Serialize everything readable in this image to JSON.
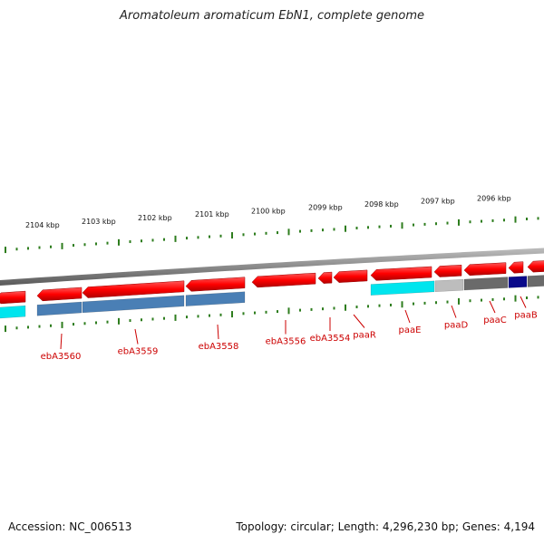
{
  "title": "Aromatoleum aromaticum EbN1, complete genome",
  "footer": {
    "accession": "Accession: NC_006513",
    "summary": "Topology: circular; Length: 4,296,230 bp; Genes: 4,194"
  },
  "colors": {
    "forward_cds": "#ff0000",
    "backbone": "#8a8a8a",
    "tick": "#2e7d1e",
    "label": "#cc0000",
    "label_leader": "#cc0000"
  },
  "kbp_ticks": [
    "2104 kbp",
    "2103 kbp",
    "2102 kbp",
    "2101 kbp",
    "2100 kbp",
    "2099 kbp",
    "2098 kbp",
    "2097 kbp",
    "2096 kbp"
  ],
  "gene_labels": [
    "ebA3560",
    "ebA3559",
    "ebA3558",
    "ebA3556",
    "ebA3554",
    "paaR",
    "paaE",
    "paaD",
    "paaC",
    "paaB"
  ],
  "features": [
    {
      "kind": "cds",
      "color": "#ff0000"
    },
    {
      "kind": "cds",
      "color": "#ff0000"
    },
    {
      "kind": "cds",
      "color": "#ff0000"
    },
    {
      "kind": "cds",
      "color": "#ff0000"
    },
    {
      "kind": "cds",
      "color": "#ff0000"
    },
    {
      "kind": "cds",
      "color": "#ff0000"
    },
    {
      "kind": "cds",
      "color": "#ff0000"
    },
    {
      "kind": "cds",
      "color": "#ff0000"
    },
    {
      "kind": "cds",
      "color": "#ff0000"
    },
    {
      "kind": "cds",
      "color": "#ff0000"
    },
    {
      "kind": "cds",
      "color": "#ff0000"
    },
    {
      "kind": "cds",
      "color": "#ff0000"
    },
    {
      "kind": "annotation",
      "color": "#00e5ee"
    },
    {
      "kind": "annotation",
      "color": "#4a7fb5"
    },
    {
      "kind": "annotation",
      "color": "#4a7fb5"
    },
    {
      "kind": "annotation",
      "color": "#4a7fb5"
    },
    {
      "kind": "annotation",
      "color": "#00e5ee"
    },
    {
      "kind": "annotation",
      "color": "#bdbdbd"
    },
    {
      "kind": "annotation",
      "color": "#6a6a6a"
    },
    {
      "kind": "annotation",
      "color": "#0a0a8a"
    },
    {
      "kind": "annotation",
      "color": "#6a6a6a"
    }
  ]
}
